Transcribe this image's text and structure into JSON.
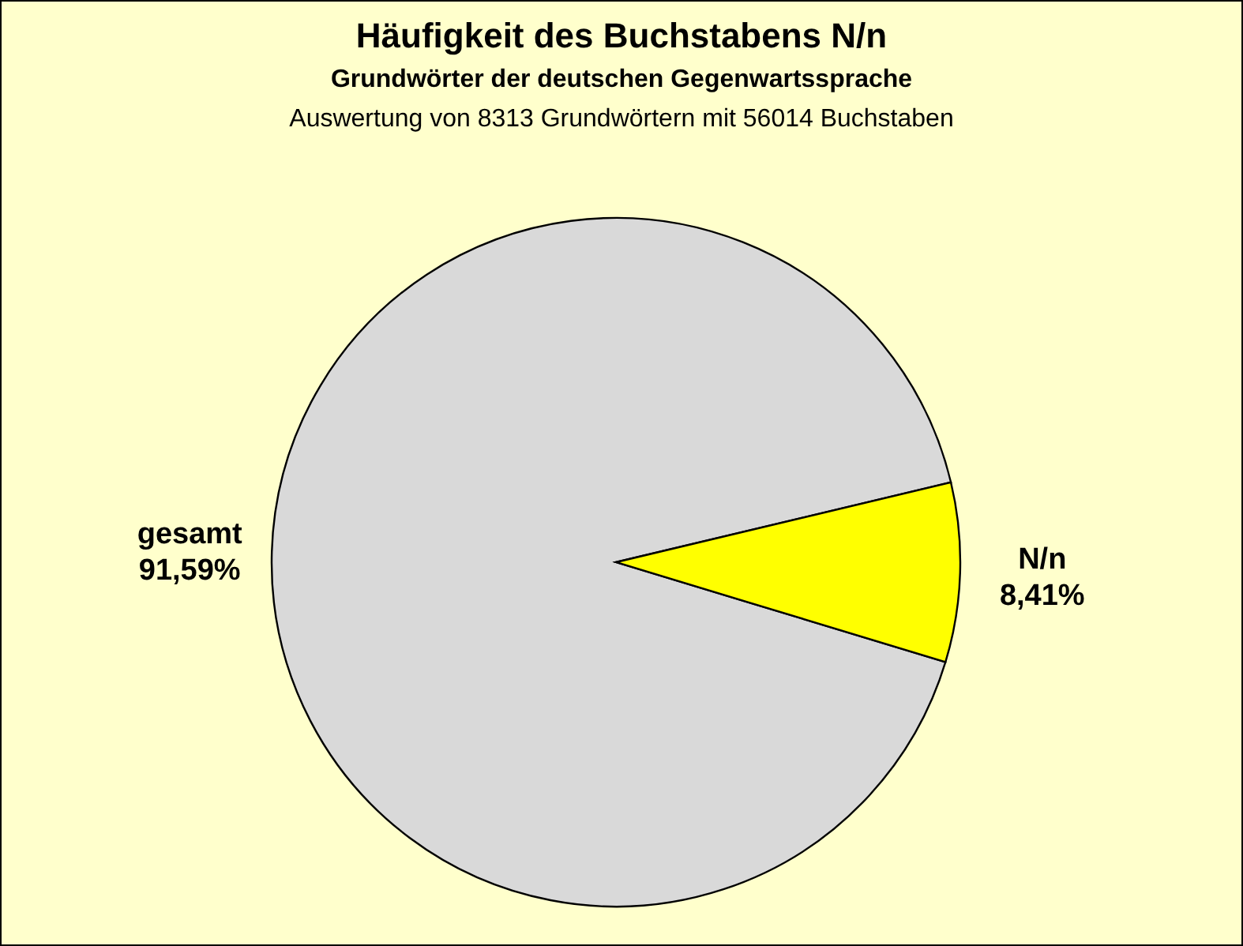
{
  "chart_data": {
    "type": "pie",
    "title": "Häufigkeit des Buchstabens N/n",
    "subtitle": "Grundwörter der deutschen Gegenwartssprache",
    "annotations": [
      "Auswertung von 8313 Grundwörtern mit 56014 Buchstaben"
    ],
    "categories": [
      "gesamt",
      "N/n"
    ],
    "values": [
      91.59,
      8.41
    ],
    "colors": [
      "#d9d9d9",
      "#ffff00"
    ],
    "value_labels": [
      "91,59%",
      "8,41%"
    ]
  }
}
